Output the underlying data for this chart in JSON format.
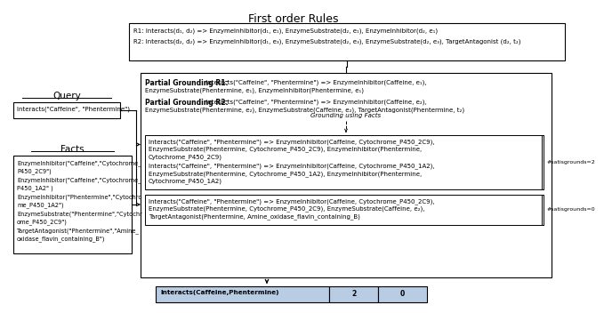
{
  "title": "First order Rules",
  "bg_color": "#ffffff",
  "rules_text_r1": "R1: Interacts(d₁, d₂) => EnzymeInhibitor(d₁, e₁), EnzymeSubstrate(d₂, e₁), EnzymeInhibitor(d₂, e₁)",
  "rules_text_r2": "R2: Interacts(d₂, d₂) => EnzymeInhibitor(d₁, e₃), EnzymeSubstrate(d₂, e₃), EnzymeSubstrate(d₂, e₃), TargetAntagonist (d₂, t₂)",
  "query_label": "Query",
  "query_box_text": "Interacts(\"Caffeine\", \"Phentermine\")",
  "facts_label": "Facts",
  "facts_lines": [
    "EnzymeInhibitor(\"Caffeine\",\"Cytochrome_",
    "P450_2C9\")",
    "EnzymeInhibitor(\"Caffeine\",\"Cytochrome_",
    "P450_1A2\" )",
    "EnzymeInhibitor(\"Phentermine\",\"Cytochro",
    "me_P450_1A2\")",
    "EnzymeSubstrate(\"Phentermine\",\"Cytochr",
    "ome_P450_2C9\")",
    "TargetAntagonist(\"Phentermine\",\"Amine_",
    "oxidase_flavin_containing_B\")"
  ],
  "pg1_bold": "Partial Grounding R1:",
  "pg1_rest": " Interacts(\"Caffeine\", \"Phentermine\") => EnzymeInhibitor(Caffeine, e₁),",
  "pg1_line2": "EnzymeSubstrate(Phentermine, e₁), EnzymeInhibitor(Phentermine, e₁)",
  "pg2_bold": "Partial Grounding R2:",
  "pg2_rest": " Interacts(\"Caffeine\", \"Phentermine\") => EnzymeInhibitor(Caffeine, e₂),",
  "pg2_line2": "EnzymeSubstrate(Phentermine, e₂), EnzymeSubstrate(Caffeine, e₂), TargetAntagonist(Phentermine, t₂)",
  "grounding_label": "Grounding using Facts",
  "ground1_lines": [
    "Interacts(\"Caffeine\", \"Phentermine\") => EnzymeInhibitor(Caffeine, Cytochrome_P450_2C9),",
    "EnzymeSubstrate(Phentermine, Cytochrome_P450_2C9), EnzymeInhibitor(Phentermine,",
    "Cytochrome_P450_2C9)"
  ],
  "ground2_lines": [
    "Interacts(\"Caffeine\", \"Phentermine\") => EnzymeInhibitor(Caffeine, Cytochrome_P450_1A2),",
    "EnzymeSubstrate(Phentermine, Cytochrome_P450_1A2), EnzymeInhibitor(Phentermine,",
    "Cytochrome_P450_1A2)"
  ],
  "ground3_lines": [
    "Interacts(\"Caffeine\", \"Phentermine\") => EnzymeInhibitor(Caffeine, Cytochrome_P450_2C9),",
    "EnzymeSubstrate(Phentermine, Cytochrome_P450_2C9), EnzymeSubstrate(Caffeine, e₂),",
    "TargetAntagonist(Phentermine, Amine_oxidase_flavin_containing_B)"
  ],
  "satisgrounds2": "#satisgrounds=2",
  "satisgrounds0": "#satisgrounds=0",
  "tbl_col1": "Interacts(Caffeine,Phentermine)",
  "tbl_col2": "2",
  "tbl_col3": "0",
  "tbl_color": "#b8cce4"
}
